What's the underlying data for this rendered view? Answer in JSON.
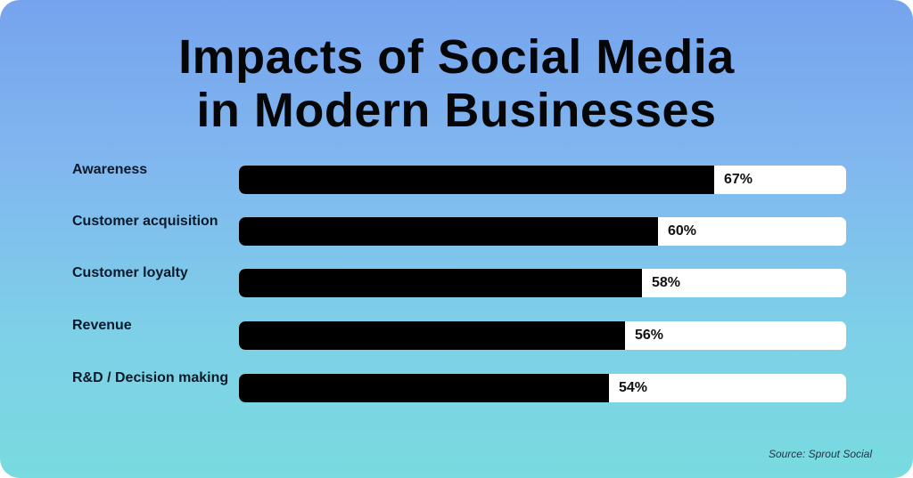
{
  "chart_data": {
    "type": "bar",
    "orientation": "horizontal",
    "title": "Impacts of Social Media in Modern Businesses",
    "categories": [
      "Awareness",
      "Customer acquisition",
      "Customer loyalty",
      "Revenue",
      "R&D / Decision making"
    ],
    "values": [
      67,
      60,
      58,
      56,
      54
    ],
    "value_labels": [
      "67%",
      "60%",
      "58%",
      "56%",
      "54%"
    ],
    "xlabel": "",
    "ylabel": "",
    "unit": "%",
    "grid": false,
    "legend": null,
    "annotations": [
      "Source: Sprout Social"
    ]
  },
  "title": {
    "line1": "Impacts of Social Media",
    "line2": "in Modern Businesses"
  },
  "bars": [
    {
      "label": "Awareness",
      "value": 67,
      "value_label": "67%"
    },
    {
      "label": "Customer acquisition",
      "value": 60,
      "value_label": "60%"
    },
    {
      "label": "Customer loyalty",
      "value": 58,
      "value_label": "58%"
    },
    {
      "label": "Revenue",
      "value": 56,
      "value_label": "56%"
    },
    {
      "label": "R&D / Decision making",
      "value": 54,
      "value_label": "54%"
    }
  ],
  "source": "Source: Sprout Social",
  "colors": {
    "bar_fill": "#000000",
    "bar_track": "#ffffff",
    "background_top": "#76a3ee",
    "background_bottom": "#78dbdf"
  }
}
